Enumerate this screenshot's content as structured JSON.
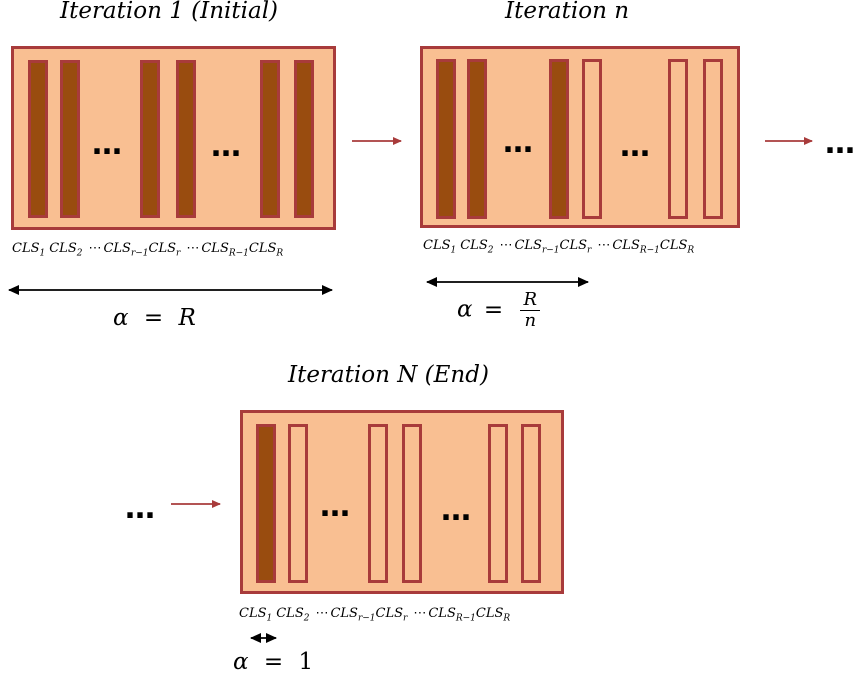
{
  "colors": {
    "panel_fill": "#f9bf92",
    "panel_border": "#a83b3b",
    "filled_bar": "#994c0f",
    "arrow": "#a83b3b"
  },
  "panels": [
    {
      "title": "Iteration 1 (Initial)",
      "bar_fill": [
        "filled",
        "filled",
        "filled",
        "filled",
        "filled",
        "filled"
      ],
      "alpha": {
        "lhs": "α",
        "eq": "=",
        "rhs": "R"
      }
    },
    {
      "title": "Iteration n",
      "bar_fill": [
        "filled",
        "filled",
        "filled",
        "hollow",
        "hollow",
        "hollow"
      ],
      "alpha": {
        "lhs": "α",
        "eq": "=",
        "numerator": "R",
        "denominator": "n"
      }
    },
    {
      "title": "Iteration N (End)",
      "bar_fill": [
        "filled",
        "hollow",
        "hollow",
        "hollow",
        "hollow",
        "hollow"
      ],
      "alpha": {
        "lhs": "α",
        "eq": "=",
        "rhs": "1"
      }
    }
  ],
  "labels": [
    {
      "base": "CLS",
      "sub": "1"
    },
    {
      "base": "CLS",
      "sub": "2"
    },
    {
      "sep": "⋯"
    },
    {
      "base": "CLS",
      "sub": "r−1"
    },
    {
      "base": "CLS",
      "sub": "r"
    },
    {
      "sep": "⋯"
    },
    {
      "base": "CLS",
      "sub": "R−1"
    },
    {
      "base": "CLS",
      "sub": "R"
    }
  ],
  "ellipsis": "…"
}
